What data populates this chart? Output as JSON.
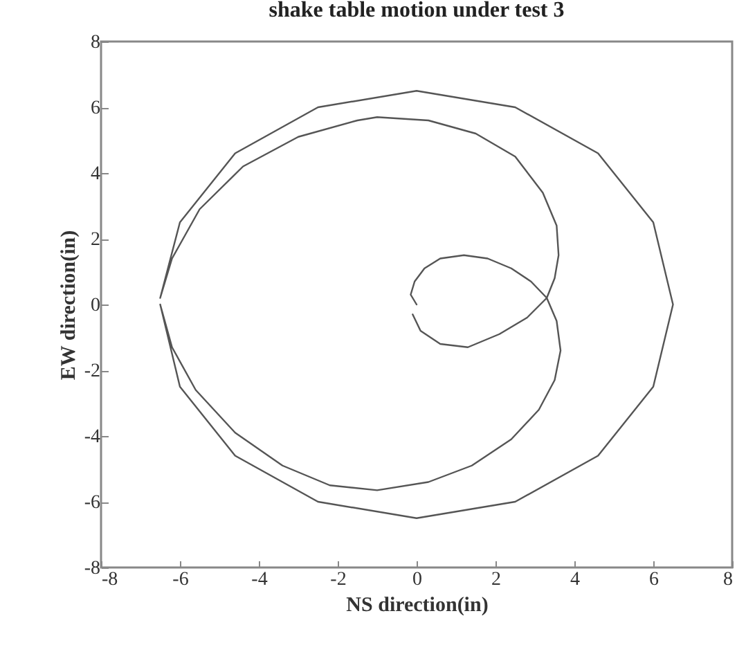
{
  "chart_data": {
    "type": "line",
    "title": "shake table motion under test 3",
    "xlabel": "NS direction(in)",
    "ylabel": "EW direction(in)",
    "xlim": [
      -8,
      8
    ],
    "ylim": [
      -8,
      8
    ],
    "xticks": [
      -8,
      -6,
      -4,
      -2,
      0,
      2,
      4,
      6,
      8
    ],
    "yticks": [
      -8,
      -6,
      -4,
      -2,
      0,
      2,
      4,
      6,
      8
    ],
    "grid": false,
    "x": [
      0,
      -0.15,
      -0.05,
      0.2,
      0.6,
      1.2,
      1.8,
      2.4,
      2.9,
      3.3,
      3.55,
      3.65,
      3.5,
      3.1,
      2.4,
      1.4,
      0.3,
      -1,
      -2.2,
      -3.4,
      -4.6,
      -5.6,
      -6.2,
      -6.5,
      -6.0,
      -4.6,
      -2.5,
      0,
      2.5,
      4.6,
      6.0,
      6.5,
      6.0,
      4.6,
      2.5,
      0,
      -2.5,
      -4.6,
      -6.0,
      -6.5,
      -6.2,
      -5.5,
      -4.4,
      -3,
      -1.5,
      -1,
      0.3,
      1.5,
      2.5,
      3.2,
      3.55,
      3.6,
      3.5,
      3.3,
      2.8,
      2.1,
      1.3,
      0.6,
      0.1,
      -0.1
    ],
    "series": [
      {
        "color": "#555555",
        "values": [
          0,
          0.3,
          0.7,
          1.1,
          1.4,
          1.5,
          1.4,
          1.1,
          0.7,
          0.2,
          -0.5,
          -1.4,
          -2.3,
          -3.2,
          -4.1,
          -4.9,
          -5.4,
          -5.65,
          -5.5,
          -4.9,
          -3.9,
          -2.6,
          -1.3,
          0,
          -2.5,
          -4.6,
          -6.0,
          -6.5,
          -6.0,
          -4.6,
          -2.5,
          0,
          2.5,
          4.6,
          6.0,
          6.5,
          6.0,
          4.6,
          2.5,
          0.2,
          1.4,
          2.9,
          4.2,
          5.1,
          5.6,
          5.7,
          5.6,
          5.2,
          4.5,
          3.4,
          2.4,
          1.5,
          0.8,
          0.2,
          -0.4,
          -0.9,
          -1.3,
          -1.2,
          -0.8,
          -0.3
        ]
      }
    ]
  }
}
